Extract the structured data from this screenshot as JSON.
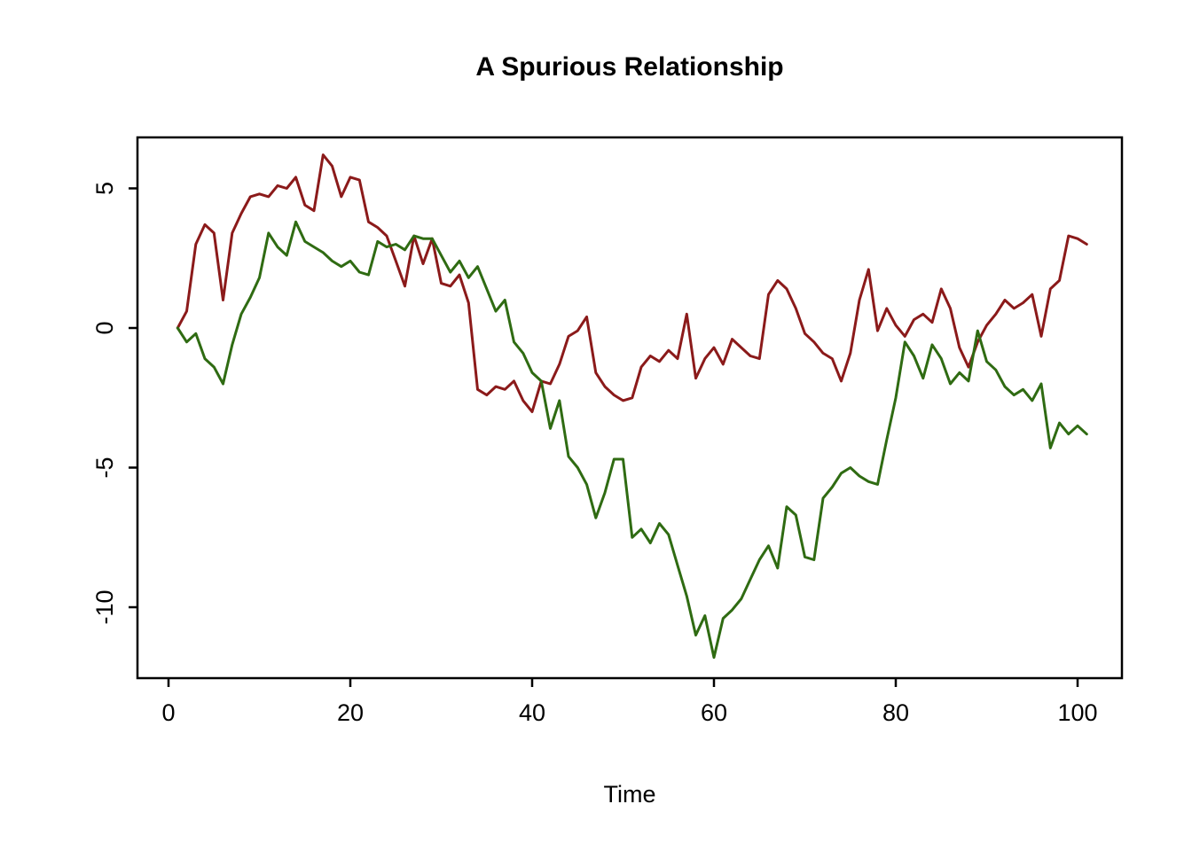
{
  "chart_data": {
    "type": "line",
    "title": "A Spurious Relationship",
    "xlabel": "Time",
    "ylabel": "",
    "xlim": [
      0,
      105
    ],
    "ylim": [
      -12.5,
      6.5
    ],
    "x_ticks": [
      0,
      20,
      40,
      60,
      80,
      100
    ],
    "y_ticks": [
      5,
      0,
      -5,
      -10
    ],
    "x_start": 1,
    "grid": false,
    "legend": "none",
    "series": [
      {
        "name": "series-red",
        "color": "#8B1A1A",
        "values": [
          0.0,
          0.6,
          3.0,
          3.7,
          3.4,
          1.0,
          3.4,
          4.1,
          4.7,
          4.8,
          4.7,
          5.1,
          5.0,
          5.4,
          4.4,
          4.2,
          6.2,
          5.8,
          4.7,
          5.4,
          5.3,
          3.8,
          3.6,
          3.3,
          2.4,
          1.5,
          3.3,
          2.3,
          3.2,
          1.6,
          1.5,
          1.9,
          0.9,
          -2.2,
          -2.4,
          -2.1,
          -2.2,
          -1.9,
          -2.6,
          -3.0,
          -1.9,
          -2.0,
          -1.3,
          -0.3,
          -0.1,
          0.4,
          -1.6,
          -2.1,
          -2.4,
          -2.6,
          -2.5,
          -1.4,
          -1.0,
          -1.2,
          -0.8,
          -1.1,
          0.5,
          -1.8,
          -1.1,
          -0.7,
          -1.3,
          -0.4,
          -0.7,
          -1.0,
          -1.1,
          1.2,
          1.7,
          1.4,
          0.7,
          -0.2,
          -0.5,
          -0.9,
          -1.1,
          -1.9,
          -0.9,
          1.0,
          2.1,
          -0.1,
          0.7,
          0.1,
          -0.3,
          0.3,
          0.5,
          0.2,
          1.4,
          0.7,
          -0.7,
          -1.4,
          -0.5,
          0.1,
          0.5,
          1.0,
          0.7,
          0.9,
          1.2,
          -0.3,
          1.4,
          1.7,
          3.3,
          3.2,
          3.0
        ]
      },
      {
        "name": "series-green",
        "color": "#2F6B12",
        "values": [
          0.0,
          -0.5,
          -0.2,
          -1.1,
          -1.4,
          -2.0,
          -0.6,
          0.5,
          1.1,
          1.8,
          3.4,
          2.9,
          2.6,
          3.8,
          3.1,
          2.9,
          2.7,
          2.4,
          2.2,
          2.4,
          2.0,
          1.9,
          3.1,
          2.9,
          3.0,
          2.8,
          3.3,
          3.2,
          3.2,
          2.6,
          2.0,
          2.4,
          1.8,
          2.2,
          1.4,
          0.6,
          1.0,
          -0.5,
          -0.9,
          -1.6,
          -1.9,
          -3.6,
          -2.6,
          -4.6,
          -5.0,
          -5.6,
          -6.8,
          -5.9,
          -4.7,
          -4.7,
          -7.5,
          -7.2,
          -7.7,
          -7.0,
          -7.4,
          -8.5,
          -9.6,
          -11.0,
          -10.3,
          -11.8,
          -10.4,
          -10.1,
          -9.7,
          -9.0,
          -8.3,
          -7.8,
          -8.6,
          -6.4,
          -6.7,
          -8.2,
          -8.3,
          -6.1,
          -5.7,
          -5.2,
          -5.0,
          -5.3,
          -5.5,
          -5.6,
          -4.0,
          -2.5,
          -0.5,
          -1.0,
          -1.8,
          -0.6,
          -1.1,
          -2.0,
          -1.6,
          -1.9,
          -0.1,
          -1.2,
          -1.5,
          -2.1,
          -2.4,
          -2.2,
          -2.6,
          -2.0,
          -4.3,
          -3.4,
          -3.8,
          -3.5,
          -3.8
        ]
      }
    ]
  }
}
